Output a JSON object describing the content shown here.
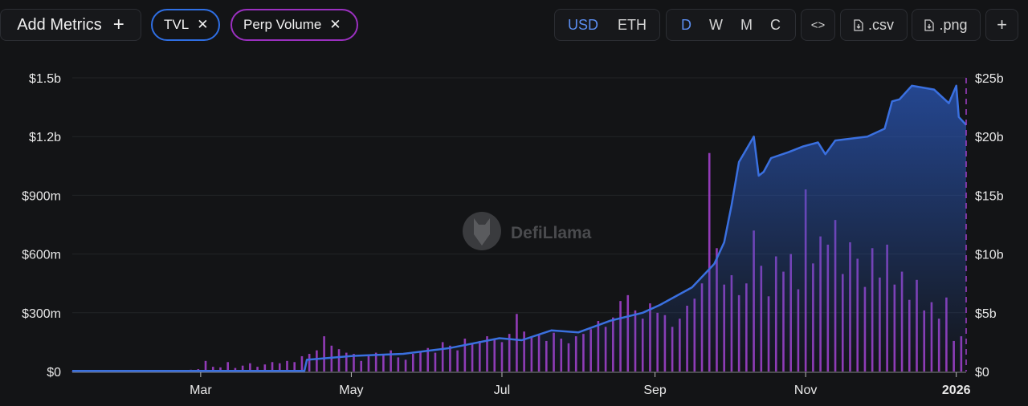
{
  "toolbar": {
    "add_metrics": "Add Metrics",
    "plus": "+",
    "chips": [
      {
        "label": "TVL",
        "color": "#2f6fe4"
      },
      {
        "label": "Perp Volume",
        "color": "#9b30c0"
      }
    ],
    "close": "✕",
    "currency": [
      "USD",
      "ETH"
    ],
    "currency_selected": "USD",
    "periods": [
      "D",
      "W",
      "M",
      "C"
    ],
    "period_selected": "D",
    "embed": "<>",
    "csv": ".csv",
    "png": ".png",
    "more": "+"
  },
  "watermark": "DefiLlama",
  "chart_data": {
    "type": "bar+area",
    "left_axis": {
      "ticks": [
        "$0",
        "$300m",
        "$600m",
        "$900m",
        "$1.2b",
        "$1.5b"
      ],
      "range": [
        0,
        1.5
      ],
      "unit": "billion USD"
    },
    "right_axis": {
      "ticks": [
        "$0",
        "$5b",
        "$10b",
        "$15b",
        "$20b",
        "$25b"
      ],
      "range": [
        0,
        25
      ],
      "unit": "billion USD"
    },
    "x_ticks": [
      "Mar",
      "May",
      "Jul",
      "Sep",
      "Nov",
      "2026"
    ],
    "x_tick_dates": [
      "2025-03-01",
      "2025-05-01",
      "2025-07-01",
      "2025-09-01",
      "2025-11-01",
      "2026-01-01"
    ],
    "grid": true,
    "colors": {
      "tvl": "#3a70e0",
      "volume": "#a13fc9",
      "background": "#131416"
    },
    "series": [
      {
        "name": "TVL",
        "axis": "left",
        "kind": "area",
        "points": [
          [
            "2025-01-08",
            0.003
          ],
          [
            "2025-04-12",
            0.003
          ],
          [
            "2025-04-13",
            0.06
          ],
          [
            "2025-05-02",
            0.08
          ],
          [
            "2025-05-22",
            0.09
          ],
          [
            "2025-06-10",
            0.12
          ],
          [
            "2025-06-30",
            0.17
          ],
          [
            "2025-07-09",
            0.16
          ],
          [
            "2025-07-21",
            0.21
          ],
          [
            "2025-08-01",
            0.2
          ],
          [
            "2025-08-14",
            0.26
          ],
          [
            "2025-08-27",
            0.3
          ],
          [
            "2025-09-03",
            0.34
          ],
          [
            "2025-09-16",
            0.43
          ],
          [
            "2025-09-25",
            0.55
          ],
          [
            "2025-09-29",
            0.66
          ],
          [
            "2025-10-02",
            0.85
          ],
          [
            "2025-10-05",
            1.07
          ],
          [
            "2025-10-11",
            1.2
          ],
          [
            "2025-10-13",
            1.0
          ],
          [
            "2025-10-15",
            1.02
          ],
          [
            "2025-10-18",
            1.09
          ],
          [
            "2025-10-25",
            1.12
          ],
          [
            "2025-10-31",
            1.15
          ],
          [
            "2025-11-06",
            1.17
          ],
          [
            "2025-11-09",
            1.11
          ],
          [
            "2025-11-13",
            1.18
          ],
          [
            "2025-11-26",
            1.2
          ],
          [
            "2025-12-03",
            1.24
          ],
          [
            "2025-12-06",
            1.38
          ],
          [
            "2025-12-09",
            1.39
          ],
          [
            "2025-12-14",
            1.46
          ],
          [
            "2025-12-23",
            1.44
          ],
          [
            "2025-12-29",
            1.37
          ],
          [
            "2026-01-01",
            1.46
          ],
          [
            "2026-01-02",
            1.3
          ],
          [
            "2026-01-05",
            1.26
          ]
        ]
      },
      {
        "name": "Perp Volume",
        "axis": "right",
        "kind": "bar",
        "points": [
          [
            "2025-01-08",
            0.02
          ],
          [
            "2025-01-11",
            0.02
          ],
          [
            "2025-01-14",
            0.03
          ],
          [
            "2025-01-17",
            0.02
          ],
          [
            "2025-01-20",
            0.03
          ],
          [
            "2025-01-23",
            0.02
          ],
          [
            "2025-01-26",
            0.03
          ],
          [
            "2025-01-29",
            0.02
          ],
          [
            "2025-02-01",
            0.03
          ],
          [
            "2025-02-04",
            0.04
          ],
          [
            "2025-02-07",
            0.03
          ],
          [
            "2025-02-10",
            0.05
          ],
          [
            "2025-02-13",
            0.04
          ],
          [
            "2025-02-16",
            0.06
          ],
          [
            "2025-02-19",
            0.08
          ],
          [
            "2025-02-22",
            0.1
          ],
          [
            "2025-02-25",
            0.15
          ],
          [
            "2025-02-28",
            0.2
          ],
          [
            "2025-03-03",
            0.9
          ],
          [
            "2025-03-06",
            0.4
          ],
          [
            "2025-03-09",
            0.35
          ],
          [
            "2025-03-12",
            0.8
          ],
          [
            "2025-03-15",
            0.3
          ],
          [
            "2025-03-18",
            0.5
          ],
          [
            "2025-03-21",
            0.7
          ],
          [
            "2025-03-24",
            0.4
          ],
          [
            "2025-03-27",
            0.6
          ],
          [
            "2025-03-30",
            0.8
          ],
          [
            "2025-04-02",
            0.7
          ],
          [
            "2025-04-05",
            0.9
          ],
          [
            "2025-04-08",
            0.8
          ],
          [
            "2025-04-11",
            1.3
          ],
          [
            "2025-04-14",
            1.5
          ],
          [
            "2025-04-17",
            1.8
          ],
          [
            "2025-04-20",
            3.0
          ],
          [
            "2025-04-23",
            2.2
          ],
          [
            "2025-04-26",
            1.9
          ],
          [
            "2025-04-29",
            1.6
          ],
          [
            "2025-05-02",
            1.5
          ],
          [
            "2025-05-05",
            0.9
          ],
          [
            "2025-05-08",
            1.3
          ],
          [
            "2025-05-11",
            1.6
          ],
          [
            "2025-05-14",
            1.4
          ],
          [
            "2025-05-17",
            1.8
          ],
          [
            "2025-05-20",
            1.2
          ],
          [
            "2025-05-23",
            1.0
          ],
          [
            "2025-05-26",
            1.5
          ],
          [
            "2025-05-29",
            1.7
          ],
          [
            "2025-06-01",
            2.0
          ],
          [
            "2025-06-04",
            1.6
          ],
          [
            "2025-06-07",
            2.5
          ],
          [
            "2025-06-10",
            2.2
          ],
          [
            "2025-06-13",
            1.8
          ],
          [
            "2025-06-16",
            2.8
          ],
          [
            "2025-06-19",
            2.4
          ],
          [
            "2025-06-22",
            2.6
          ],
          [
            "2025-06-25",
            3.0
          ],
          [
            "2025-06-28",
            2.7
          ],
          [
            "2025-07-01",
            2.5
          ],
          [
            "2025-07-04",
            3.2
          ],
          [
            "2025-07-07",
            4.9
          ],
          [
            "2025-07-10",
            3.4
          ],
          [
            "2025-07-13",
            2.9
          ],
          [
            "2025-07-16",
            3.1
          ],
          [
            "2025-07-19",
            2.6
          ],
          [
            "2025-07-22",
            3.3
          ],
          [
            "2025-07-25",
            2.8
          ],
          [
            "2025-07-28",
            2.4
          ],
          [
            "2025-07-31",
            3.0
          ],
          [
            "2025-08-03",
            3.2
          ],
          [
            "2025-08-06",
            3.6
          ],
          [
            "2025-08-09",
            4.3
          ],
          [
            "2025-08-12",
            3.8
          ],
          [
            "2025-08-15",
            4.6
          ],
          [
            "2025-08-18",
            6.0
          ],
          [
            "2025-08-21",
            6.5
          ],
          [
            "2025-08-24",
            5.2
          ],
          [
            "2025-08-27",
            4.5
          ],
          [
            "2025-08-30",
            5.8
          ],
          [
            "2025-09-02",
            5.0
          ],
          [
            "2025-09-05",
            4.8
          ],
          [
            "2025-09-08",
            3.8
          ],
          [
            "2025-09-11",
            4.5
          ],
          [
            "2025-09-14",
            5.6
          ],
          [
            "2025-09-17",
            6.2
          ],
          [
            "2025-09-20",
            7.5
          ],
          [
            "2025-09-23",
            18.6
          ],
          [
            "2025-09-26",
            10.5
          ],
          [
            "2025-09-29",
            7.4
          ],
          [
            "2025-10-02",
            8.2
          ],
          [
            "2025-10-05",
            6.5
          ],
          [
            "2025-10-08",
            7.5
          ],
          [
            "2025-10-11",
            12.0
          ],
          [
            "2025-10-14",
            9.0
          ],
          [
            "2025-10-17",
            6.4
          ],
          [
            "2025-10-20",
            9.8
          ],
          [
            "2025-10-23",
            8.5
          ],
          [
            "2025-10-26",
            10.0
          ],
          [
            "2025-10-29",
            7.0
          ],
          [
            "2025-11-01",
            15.5
          ],
          [
            "2025-11-04",
            9.2
          ],
          [
            "2025-11-07",
            11.5
          ],
          [
            "2025-11-10",
            10.8
          ],
          [
            "2025-11-13",
            12.9
          ],
          [
            "2025-11-16",
            8.3
          ],
          [
            "2025-11-19",
            11.0
          ],
          [
            "2025-11-22",
            9.6
          ],
          [
            "2025-11-25",
            7.2
          ],
          [
            "2025-11-28",
            10.5
          ],
          [
            "2025-12-01",
            8.0
          ],
          [
            "2025-12-04",
            10.8
          ],
          [
            "2025-12-07",
            7.4
          ],
          [
            "2025-12-10",
            8.5
          ],
          [
            "2025-12-13",
            6.1
          ],
          [
            "2025-12-16",
            7.8
          ],
          [
            "2025-12-19",
            5.2
          ],
          [
            "2025-12-22",
            5.9
          ],
          [
            "2025-12-25",
            4.5
          ],
          [
            "2025-12-28",
            6.3
          ],
          [
            "2025-12-31",
            2.6
          ],
          [
            "2026-01-03",
            3.0
          ]
        ]
      }
    ]
  }
}
